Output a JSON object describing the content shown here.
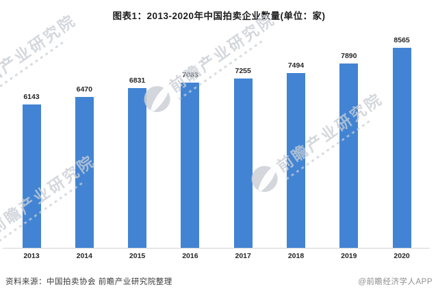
{
  "chart_data": {
    "type": "bar",
    "title": "图表1：2013-2020年中国拍卖企业数量(单位：家)",
    "categories": [
      "2013",
      "2014",
      "2015",
      "2016",
      "2017",
      "2018",
      "2019",
      "2020"
    ],
    "values": [
      6143,
      6470,
      6831,
      7083,
      7255,
      7494,
      7890,
      8565
    ],
    "xlabel": "",
    "ylabel": "",
    "unit": "家",
    "ylim": [
      0,
      8565
    ],
    "grid": false,
    "legend": "none",
    "value_labels_shown": true,
    "bar_color": "#4284d3",
    "axis_line_color": "#d2d2d2"
  },
  "watermark": {
    "brand": "前瞻产业研究院"
  },
  "footer": {
    "source": "资料来源：中国拍卖协会 前瞻产业研究院整理",
    "credit": "@前瞻经济学人APP"
  }
}
